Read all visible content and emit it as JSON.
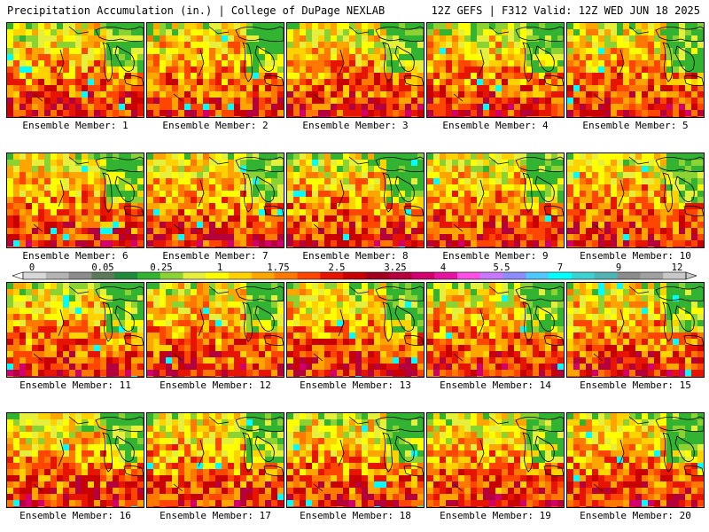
{
  "header": {
    "left_title": "Precipitation Accumulation (in.) | College of DuPage NEXLAB",
    "right_title": "12Z GEFS | F312 Valid: 12Z WED JUN 18 2025"
  },
  "members": [
    {
      "label": "Ensemble Member: 1"
    },
    {
      "label": "Ensemble Member: 2"
    },
    {
      "label": "Ensemble Member: 3"
    },
    {
      "label": "Ensemble Member: 4"
    },
    {
      "label": "Ensemble Member: 5"
    },
    {
      "label": "Ensemble Member: 6"
    },
    {
      "label": "Ensemble Member: 7"
    },
    {
      "label": "Ensemble Member: 8"
    },
    {
      "label": "Ensemble Member: 9"
    },
    {
      "label": "Ensemble Member: 10"
    },
    {
      "label": "Ensemble Member: 11"
    },
    {
      "label": "Ensemble Member: 12"
    },
    {
      "label": "Ensemble Member: 13"
    },
    {
      "label": "Ensemble Member: 14"
    },
    {
      "label": "Ensemble Member: 15"
    },
    {
      "label": "Ensemble Member: 16"
    },
    {
      "label": "Ensemble Member: 17"
    },
    {
      "label": "Ensemble Member: 18"
    },
    {
      "label": "Ensemble Member: 19"
    },
    {
      "label": "Ensemble Member: 20"
    }
  ],
  "legend": {
    "tick_labels": [
      "0",
      "0.05",
      "0.25",
      "1",
      "1.75",
      "2.5",
      "3.25",
      "4",
      "5.5",
      "7",
      "9",
      "12"
    ],
    "colors": [
      "#d8d8d8",
      "#b4b4b4",
      "#8c8c8c",
      "#5a7a5a",
      "#1e8c3c",
      "#32b432",
      "#8cd232",
      "#e6f03c",
      "#ffff00",
      "#ffd200",
      "#ffa500",
      "#ff7800",
      "#ff4600",
      "#e61400",
      "#c80000",
      "#a0001e",
      "#b4003c",
      "#d2006e",
      "#e614a0",
      "#ff50e6",
      "#c878ff",
      "#8c8cff",
      "#50c8ff",
      "#00ffff",
      "#3cd2d2",
      "#50b4b4",
      "#8c8c8c",
      "#a0a0a0",
      "#c8c8c8"
    ]
  }
}
